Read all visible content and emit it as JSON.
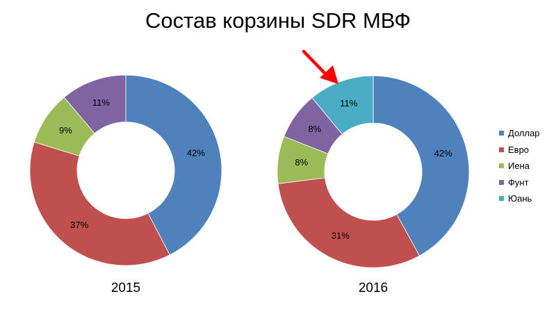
{
  "title": "Состав корзины SDR МВФ",
  "colors": {
    "Доллар": "#4f81bd",
    "Евро": "#c0504d",
    "Иена": "#9bbb59",
    "Фунт": "#8064a2",
    "Юань": "#4bacc6"
  },
  "arrow_color": "#ff0000",
  "chart_data": [
    {
      "type": "pie",
      "title": "2015",
      "labels": [
        "Доллар",
        "Евро",
        "Иена",
        "Фунт"
      ],
      "values": [
        42,
        37,
        9,
        11
      ],
      "value_labels": [
        "42%",
        "37%",
        "9%",
        "11%"
      ]
    },
    {
      "type": "pie",
      "title": "2016",
      "labels": [
        "Доллар",
        "Евро",
        "Иена",
        "Фунт",
        "Юань"
      ],
      "values": [
        42,
        31,
        8,
        8,
        11
      ],
      "value_labels": [
        "42%",
        "31%",
        "8%",
        "8%",
        "11%"
      ],
      "highlighted": "Юань"
    }
  ],
  "legend": {
    "position": "right",
    "items": [
      "Доллар",
      "Евро",
      "Иена",
      "Фунт",
      "Юань"
    ]
  }
}
